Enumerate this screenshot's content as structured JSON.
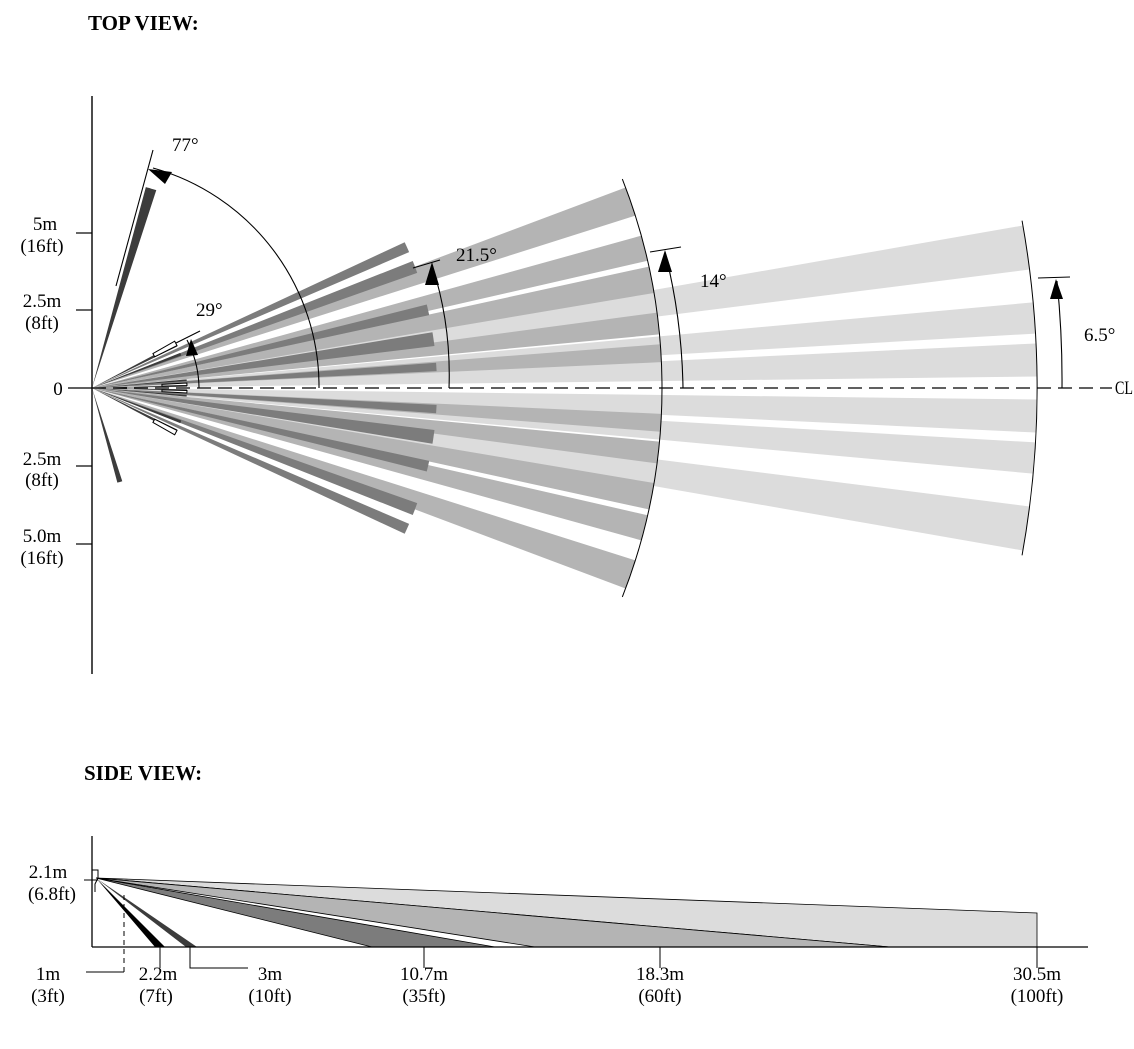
{
  "top_view": {
    "title": "TOP VIEW:",
    "y_axis_labels": [
      {
        "value": "5m",
        "unit": "(16ft)"
      },
      {
        "value": "2.5m",
        "unit": "(8ft)"
      },
      {
        "value": "0",
        "unit": ""
      },
      {
        "value": "2.5m",
        "unit": "(8ft)"
      },
      {
        "value": "5.0m",
        "unit": "(16ft)"
      }
    ],
    "angles": [
      "77°",
      "29°",
      "21.5°",
      "14°",
      "6.5°"
    ],
    "centerline_label": "CL"
  },
  "side_view": {
    "title": "SIDE VIEW:",
    "height_label": {
      "value": "2.1m",
      "unit": "(6.8ft)"
    },
    "distance_labels": [
      {
        "value": "1m",
        "unit": "(3ft)"
      },
      {
        "value": "2.2m",
        "unit": "(7ft)"
      },
      {
        "value": "3m",
        "unit": "(10ft)"
      },
      {
        "value": "10.7m",
        "unit": "(35ft)"
      },
      {
        "value": "18.3m",
        "unit": "(60ft)"
      },
      {
        "value": "30.5m",
        "unit": "(100ft)"
      }
    ]
  },
  "colors": {
    "zone_far": "#dcdcdc",
    "zone_mid": "#b4b4b4",
    "zone_near": "#7c7c7c",
    "zone_close": "#3c3c3c"
  }
}
